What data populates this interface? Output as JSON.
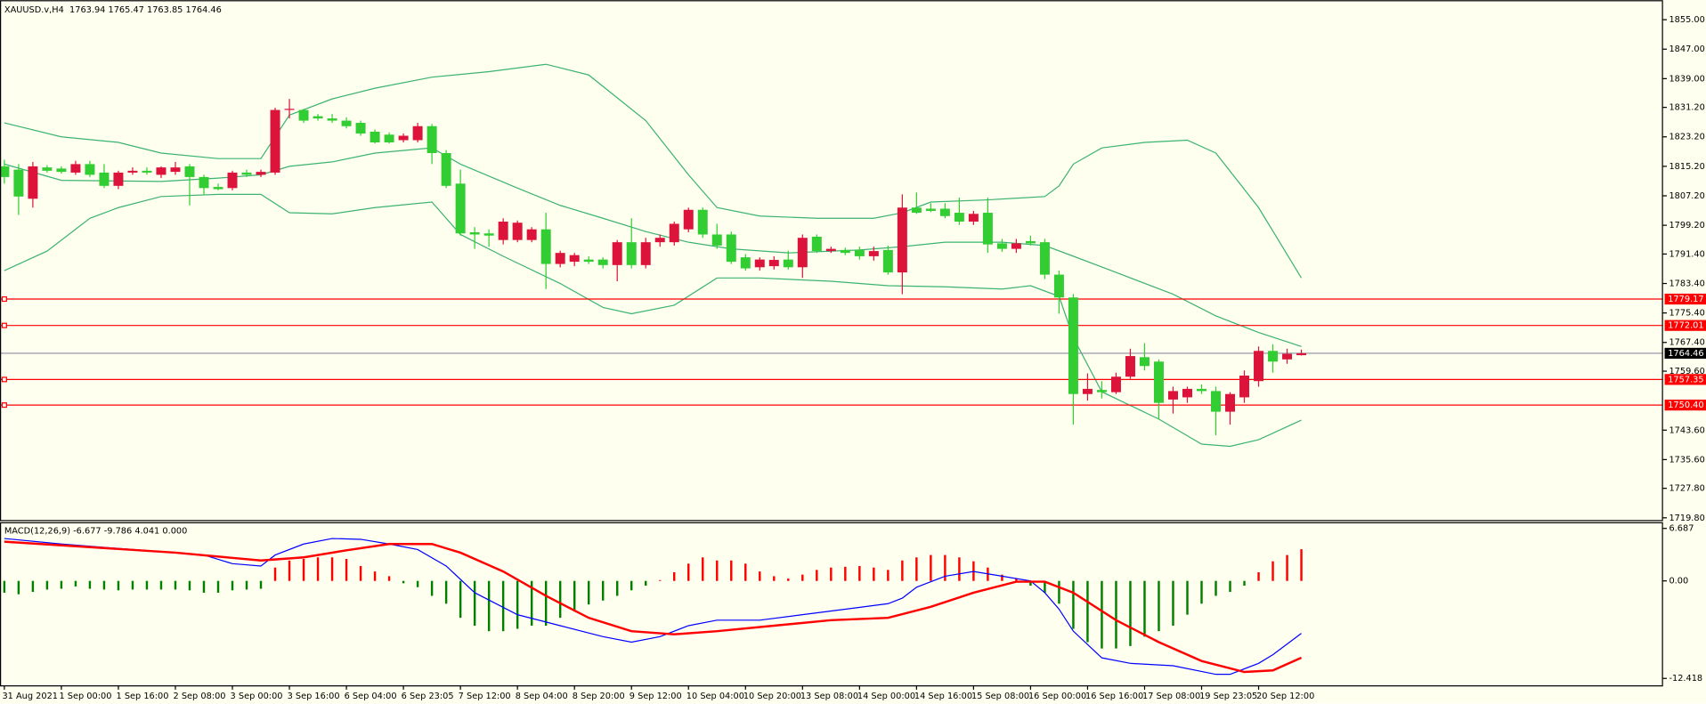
{
  "chart_data": [
    {
      "type": "candlestick",
      "title": "XAUUSD.v,H4  1763.94 1765.47 1763.85 1764.46",
      "categories": [
        "31 Aug 2021",
        null,
        null,
        null,
        "1 Sep 00:00",
        null,
        null,
        null,
        "1 Sep 16:00",
        null,
        null,
        null,
        "2 Sep 08:00",
        null,
        null,
        null,
        "3 Sep 00:00",
        null,
        null,
        null,
        "3 Sep 16:00",
        null,
        null,
        null,
        "6 Sep 04:00",
        null,
        null,
        null,
        "6 Sep 23:05",
        null,
        null,
        null,
        "7 Sep 12:00",
        null,
        null,
        null,
        "8 Sep 04:00",
        null,
        null,
        null,
        "8 Sep 20:00",
        null,
        null,
        null,
        "9 Sep 12:00",
        null,
        null,
        null,
        "10 Sep 04:00",
        null,
        null,
        null,
        "10 Sep 20:00",
        null,
        null,
        null,
        "13 Sep 08:00",
        null,
        null,
        null,
        "14 Sep 00:00",
        null,
        null,
        null,
        "14 Sep 16:00",
        null,
        null,
        null,
        "15 Sep 08:00",
        null,
        null,
        null,
        "16 Sep 00:00",
        null,
        null,
        null,
        "16 Sep 16:00",
        null,
        null,
        null,
        "17 Sep 08:00",
        null,
        null,
        null,
        "19 Sep 23:05",
        null,
        null,
        null,
        "20 Sep 12:00",
        null,
        null,
        null
      ],
      "open": [
        1815.2,
        1814.3,
        1806.4,
        1814.9,
        1814.6,
        1813.5,
        1815.8,
        1813.5,
        1809.9,
        1813.5,
        1814.0,
        1812.9,
        1813.7,
        1815.2,
        1812.3,
        1809.6,
        1809.3,
        1813.5,
        1812.9,
        1813.5,
        1830.5,
        1830.5,
        1828.8,
        1828.2,
        1827.6,
        1827.0,
        1824.6,
        1823.8,
        1822.3,
        1822.3,
        1826.1,
        1818.8,
        1810.5,
        1797.3,
        1797.0,
        1795.2,
        1795.2,
        1795.2,
        1798.1,
        1788.7,
        1789.3,
        1789.9,
        1789.9,
        1788.4,
        1794.6,
        1788.4,
        1794.6,
        1794.6,
        1798.1,
        1803.4,
        1796.7,
        1796.7,
        1790.5,
        1787.8,
        1788.1,
        1789.9,
        1787.8,
        1796.1,
        1792.2,
        1792.5,
        1792.5,
        1790.8,
        1792.5,
        1786.4,
        1804.0,
        1803.7,
        1803.7,
        1802.6,
        1800.2,
        1802.6,
        1794.3,
        1792.8,
        1794.9,
        1794.6,
        1785.8,
        1779.6,
        1753.4,
        1754.5,
        1753.9,
        1758.1,
        1763.4,
        1762.2,
        1751.9,
        1752.5,
        1754.8,
        1754.2,
        1748.6,
        1752.5,
        1756.9,
        1765.1,
        1762.8,
        1763.94
      ],
      "high": [
        1817.0,
        1815.8,
        1816.4,
        1815.5,
        1815.2,
        1816.7,
        1816.7,
        1815.8,
        1814.0,
        1814.9,
        1814.9,
        1815.2,
        1816.4,
        1815.8,
        1812.9,
        1810.5,
        1814.0,
        1814.3,
        1814.3,
        1831.1,
        1833.5,
        1830.8,
        1829.4,
        1829.4,
        1828.5,
        1827.6,
        1825.2,
        1824.4,
        1824.1,
        1827.0,
        1826.7,
        1819.6,
        1814.3,
        1798.7,
        1798.1,
        1801.1,
        1800.5,
        1798.7,
        1802.6,
        1792.3,
        1791.7,
        1790.8,
        1790.5,
        1795.2,
        1801.1,
        1795.8,
        1796.7,
        1800.2,
        1804.0,
        1804.0,
        1799.6,
        1797.5,
        1791.4,
        1790.5,
        1790.8,
        1792.3,
        1796.7,
        1796.7,
        1793.4,
        1793.1,
        1793.4,
        1793.4,
        1793.7,
        1807.6,
        1808.1,
        1805.2,
        1805.2,
        1806.7,
        1803.1,
        1806.7,
        1795.5,
        1795.5,
        1796.4,
        1795.5,
        1786.9,
        1780.5,
        1759.0,
        1756.9,
        1759.2,
        1765.7,
        1767.2,
        1762.8,
        1755.4,
        1755.4,
        1756.0,
        1755.4,
        1753.9,
        1759.8,
        1766.3,
        1766.9,
        1765.7,
        1765.47
      ],
      "low": [
        1810.5,
        1802.0,
        1804.0,
        1813.5,
        1813.2,
        1812.9,
        1812.3,
        1809.3,
        1809.0,
        1812.9,
        1812.9,
        1812.0,
        1812.9,
        1804.6,
        1807.6,
        1808.7,
        1808.7,
        1812.3,
        1812.3,
        1812.9,
        1828.2,
        1827.0,
        1827.6,
        1827.0,
        1825.5,
        1823.5,
        1821.4,
        1821.4,
        1821.7,
        1821.7,
        1815.8,
        1809.3,
        1796.4,
        1792.8,
        1793.4,
        1794.0,
        1794.6,
        1794.6,
        1781.9,
        1787.8,
        1788.1,
        1788.7,
        1787.5,
        1784.0,
        1787.5,
        1787.5,
        1793.4,
        1793.7,
        1797.3,
        1795.8,
        1792.8,
        1788.7,
        1786.9,
        1786.9,
        1787.2,
        1787.2,
        1784.9,
        1791.7,
        1791.7,
        1791.1,
        1789.9,
        1789.6,
        1785.8,
        1780.5,
        1802.3,
        1802.8,
        1801.1,
        1799.3,
        1799.3,
        1791.7,
        1792.0,
        1791.7,
        1793.7,
        1784.6,
        1775.2,
        1745.1,
        1751.6,
        1752.2,
        1753.4,
        1757.5,
        1759.8,
        1746.6,
        1748.1,
        1751.0,
        1753.4,
        1742.2,
        1745.1,
        1751.0,
        1755.4,
        1759.2,
        1761.6,
        1763.85
      ],
      "close": [
        1812.3,
        1807.0,
        1815.2,
        1814.0,
        1813.7,
        1815.8,
        1812.9,
        1809.9,
        1813.5,
        1814.0,
        1813.5,
        1814.9,
        1814.9,
        1812.3,
        1809.3,
        1809.0,
        1813.5,
        1812.9,
        1813.7,
        1830.5,
        1830.8,
        1827.6,
        1828.2,
        1827.6,
        1826.1,
        1824.1,
        1821.7,
        1821.7,
        1823.5,
        1826.1,
        1818.8,
        1809.9,
        1797.0,
        1796.7,
        1796.4,
        1800.2,
        1799.9,
        1798.1,
        1788.7,
        1791.7,
        1791.1,
        1789.3,
        1788.4,
        1794.6,
        1788.4,
        1794.6,
        1795.8,
        1799.6,
        1803.4,
        1796.7,
        1793.7,
        1789.3,
        1787.5,
        1789.9,
        1789.8,
        1787.8,
        1795.8,
        1792.2,
        1792.8,
        1791.7,
        1790.8,
        1792.2,
        1786.4,
        1804.0,
        1802.6,
        1803.1,
        1801.7,
        1800.2,
        1802.3,
        1794.0,
        1792.8,
        1794.3,
        1794.3,
        1785.8,
        1779.6,
        1753.4,
        1754.8,
        1753.9,
        1758.1,
        1763.7,
        1761.0,
        1751.0,
        1754.2,
        1754.8,
        1754.2,
        1748.6,
        1753.4,
        1758.4,
        1765.1,
        1762.2,
        1764.3,
        1764.46
      ],
      "up_color": "#dc143c",
      "down_color": "#32cd32",
      "bands": [
        {
          "color": "#3cb371",
          "x": [
            0,
            4,
            8,
            11,
            15,
            18,
            19,
            20,
            23,
            26,
            30,
            34,
            38,
            41,
            45,
            48,
            50,
            53,
            57,
            61,
            63,
            65,
            69,
            73,
            74,
            75,
            77,
            80,
            83,
            85,
            88,
            91
          ],
          "values": [
            1827.0,
            1823.2,
            1821.7,
            1818.8,
            1817.3,
            1817.3,
            1823.2,
            1829.1,
            1833.5,
            1836.4,
            1839.4,
            1840.9,
            1842.9,
            1840.0,
            1827.6,
            1812.9,
            1804.0,
            1801.7,
            1801.1,
            1801.1,
            1802.6,
            1805.5,
            1806.1,
            1807.0,
            1809.9,
            1815.8,
            1820.2,
            1821.7,
            1822.3,
            1818.8,
            1804.0,
            1784.9
          ]
        },
        {
          "color": "#3cb371",
          "x": [
            0,
            4,
            11,
            15,
            18,
            20,
            23,
            26,
            30,
            32,
            36,
            39,
            42,
            45,
            48,
            51,
            55,
            60,
            63,
            66,
            70,
            73,
            75,
            78,
            82,
            85,
            88,
            91
          ],
          "values": [
            1815.8,
            1811.4,
            1811.1,
            1812.0,
            1812.9,
            1815.2,
            1816.4,
            1818.8,
            1820.2,
            1815.8,
            1809.3,
            1804.6,
            1801.1,
            1797.5,
            1794.6,
            1792.8,
            1791.7,
            1792.5,
            1793.4,
            1794.6,
            1794.6,
            1793.7,
            1790.8,
            1786.4,
            1780.5,
            1774.6,
            1770.1,
            1766.3
          ]
        },
        {
          "color": "#3cb371",
          "x": [
            0,
            3,
            6,
            8,
            11,
            15,
            18,
            20,
            23,
            26,
            30,
            32,
            35,
            39,
            42,
            44,
            47,
            50,
            53,
            58,
            62,
            66,
            70,
            72,
            74,
            75,
            77,
            81,
            84,
            86,
            88,
            91
          ],
          "values": [
            1786.9,
            1792.2,
            1801.1,
            1804.0,
            1807.0,
            1807.6,
            1807.6,
            1802.6,
            1802.3,
            1804.0,
            1805.5,
            1796.7,
            1790.8,
            1783.4,
            1776.9,
            1775.2,
            1777.5,
            1784.9,
            1784.9,
            1784.0,
            1782.8,
            1782.5,
            1781.9,
            1782.8,
            1779.9,
            1768.7,
            1754.0,
            1746.6,
            1739.8,
            1739.2,
            1741.0,
            1746.3
          ]
        }
      ],
      "levels": [
        {
          "value": 1779.17,
          "label": "1779.17"
        },
        {
          "value": 1772.01,
          "label": "1772.01"
        },
        {
          "value": 1757.35,
          "label": "1757.35"
        },
        {
          "value": 1750.4,
          "label": "1750.40"
        }
      ],
      "level_color": "#ff0000",
      "current_price": {
        "value": 1764.46,
        "label": "1764.46"
      },
      "ylim": [
        1719.2,
        1860.0
      ],
      "yticks": [
        {
          "value": 1855,
          "label": "1855.00"
        },
        {
          "value": 1847,
          "label": "1847.00"
        },
        {
          "value": 1839,
          "label": "1839.00"
        },
        {
          "value": 1831.2,
          "label": "1831.20"
        },
        {
          "value": 1823.2,
          "label": "1823.20"
        },
        {
          "value": 1815.2,
          "label": "1815.20"
        },
        {
          "value": 1807.2,
          "label": "1807.20"
        },
        {
          "value": 1799.2,
          "label": "1799.20"
        },
        {
          "value": 1791.4,
          "label": "1791.40"
        },
        {
          "value": 1783.4,
          "label": "1783.40"
        },
        {
          "value": 1775.4,
          "label": "1775.40"
        },
        {
          "value": 1767.4,
          "label": "1767.40"
        },
        {
          "value": 1759.6,
          "label": "1759.60"
        },
        {
          "value": 1743.6,
          "label": "1743.60"
        },
        {
          "value": 1735.6,
          "label": "1735.60"
        },
        {
          "value": 1727.8,
          "label": "1727.80"
        },
        {
          "value": 1719.8,
          "label": "1719.80"
        }
      ]
    },
    {
      "type": "macd",
      "title": "MACD(12,26,9) -6.677 -9.786 4.041 0.000",
      "histogram": {
        "up_color": "#ff0000",
        "down_color": "#008000",
        "values": [
          -1.5,
          -1.7,
          -1.4,
          -1.1,
          -1.0,
          -0.7,
          -1.0,
          -1.1,
          -1.2,
          -1.1,
          -1.1,
          -1.1,
          -1.1,
          -1.2,
          -1.5,
          -1.5,
          -1.2,
          -1.1,
          -1.0,
          1.7,
          2.6,
          2.8,
          3.0,
          3.0,
          2.8,
          1.9,
          1.2,
          0.6,
          -0.3,
          -0.8,
          -1.9,
          -2.9,
          -4.7,
          -5.7,
          -6.4,
          -6.4,
          -6.1,
          -5.7,
          -5.7,
          -4.7,
          -3.9,
          -3.0,
          -2.5,
          -1.9,
          -1.2,
          -0.6,
          0.1,
          1.1,
          2.2,
          3.0,
          2.6,
          2.6,
          2.2,
          1.2,
          0.6,
          0.3,
          0.8,
          1.4,
          1.7,
          1.8,
          1.9,
          1.7,
          1.4,
          2.6,
          3.0,
          3.3,
          3.3,
          3.0,
          2.5,
          1.7,
          0.8,
          0.3,
          -0.6,
          -1.5,
          -2.9,
          -6.1,
          -7.8,
          -8.6,
          -8.6,
          -8.3,
          -7.1,
          -6.4,
          -5.7,
          -4.3,
          -2.9,
          -1.9,
          -1.4,
          -0.6,
          1.1,
          2.5,
          3.3,
          4.041
        ]
      },
      "lines": [
        {
          "color": "#0000ff",
          "width": 1,
          "x": [
            0,
            4,
            9,
            14,
            16,
            18,
            19,
            21,
            23,
            25,
            27,
            29,
            31,
            33,
            36,
            39,
            42,
            44,
            46,
            48,
            50,
            53,
            56,
            59,
            62,
            63,
            64,
            66,
            68,
            70,
            72,
            73,
            74,
            75,
            77,
            79,
            82,
            85,
            86,
            88,
            89,
            91
          ],
          "values": [
            5.4,
            4.7,
            4.0,
            3.3,
            2.2,
            1.9,
            3.3,
            4.7,
            5.4,
            5.3,
            4.7,
            4.0,
            1.9,
            -1.5,
            -4.3,
            -5.7,
            -7.1,
            -7.8,
            -7.1,
            -5.7,
            -5.0,
            -5.0,
            -4.3,
            -3.6,
            -2.9,
            -2.2,
            -0.8,
            0.6,
            1.2,
            0.6,
            0.0,
            -1.5,
            -3.6,
            -6.4,
            -9.8,
            -10.5,
            -10.8,
            -11.9,
            -11.9,
            -10.5,
            -9.4,
            -6.677
          ]
        },
        {
          "color": "#ff0000",
          "width": 2,
          "x": [
            0,
            6,
            12,
            18,
            21,
            24,
            27,
            30,
            32,
            35,
            38,
            41,
            44,
            47,
            50,
            54,
            58,
            62,
            65,
            68,
            71,
            73,
            75,
            78,
            81,
            84,
            87,
            89,
            91
          ],
          "values": [
            5.0,
            4.3,
            3.6,
            2.6,
            3.0,
            3.9,
            4.7,
            4.7,
            3.6,
            1.2,
            -1.9,
            -4.7,
            -6.4,
            -6.8,
            -6.4,
            -5.7,
            -5.0,
            -4.7,
            -3.3,
            -1.5,
            -0.1,
            -0.1,
            -1.5,
            -5.0,
            -7.8,
            -10.2,
            -11.6,
            -11.4,
            -9.786
          ]
        }
      ],
      "ylim": [
        -13.3,
        7.34
      ],
      "yticks": [
        6.687,
        {
          "value": 0,
          "label": "0.00"
        },
        -12.418
      ]
    }
  ]
}
